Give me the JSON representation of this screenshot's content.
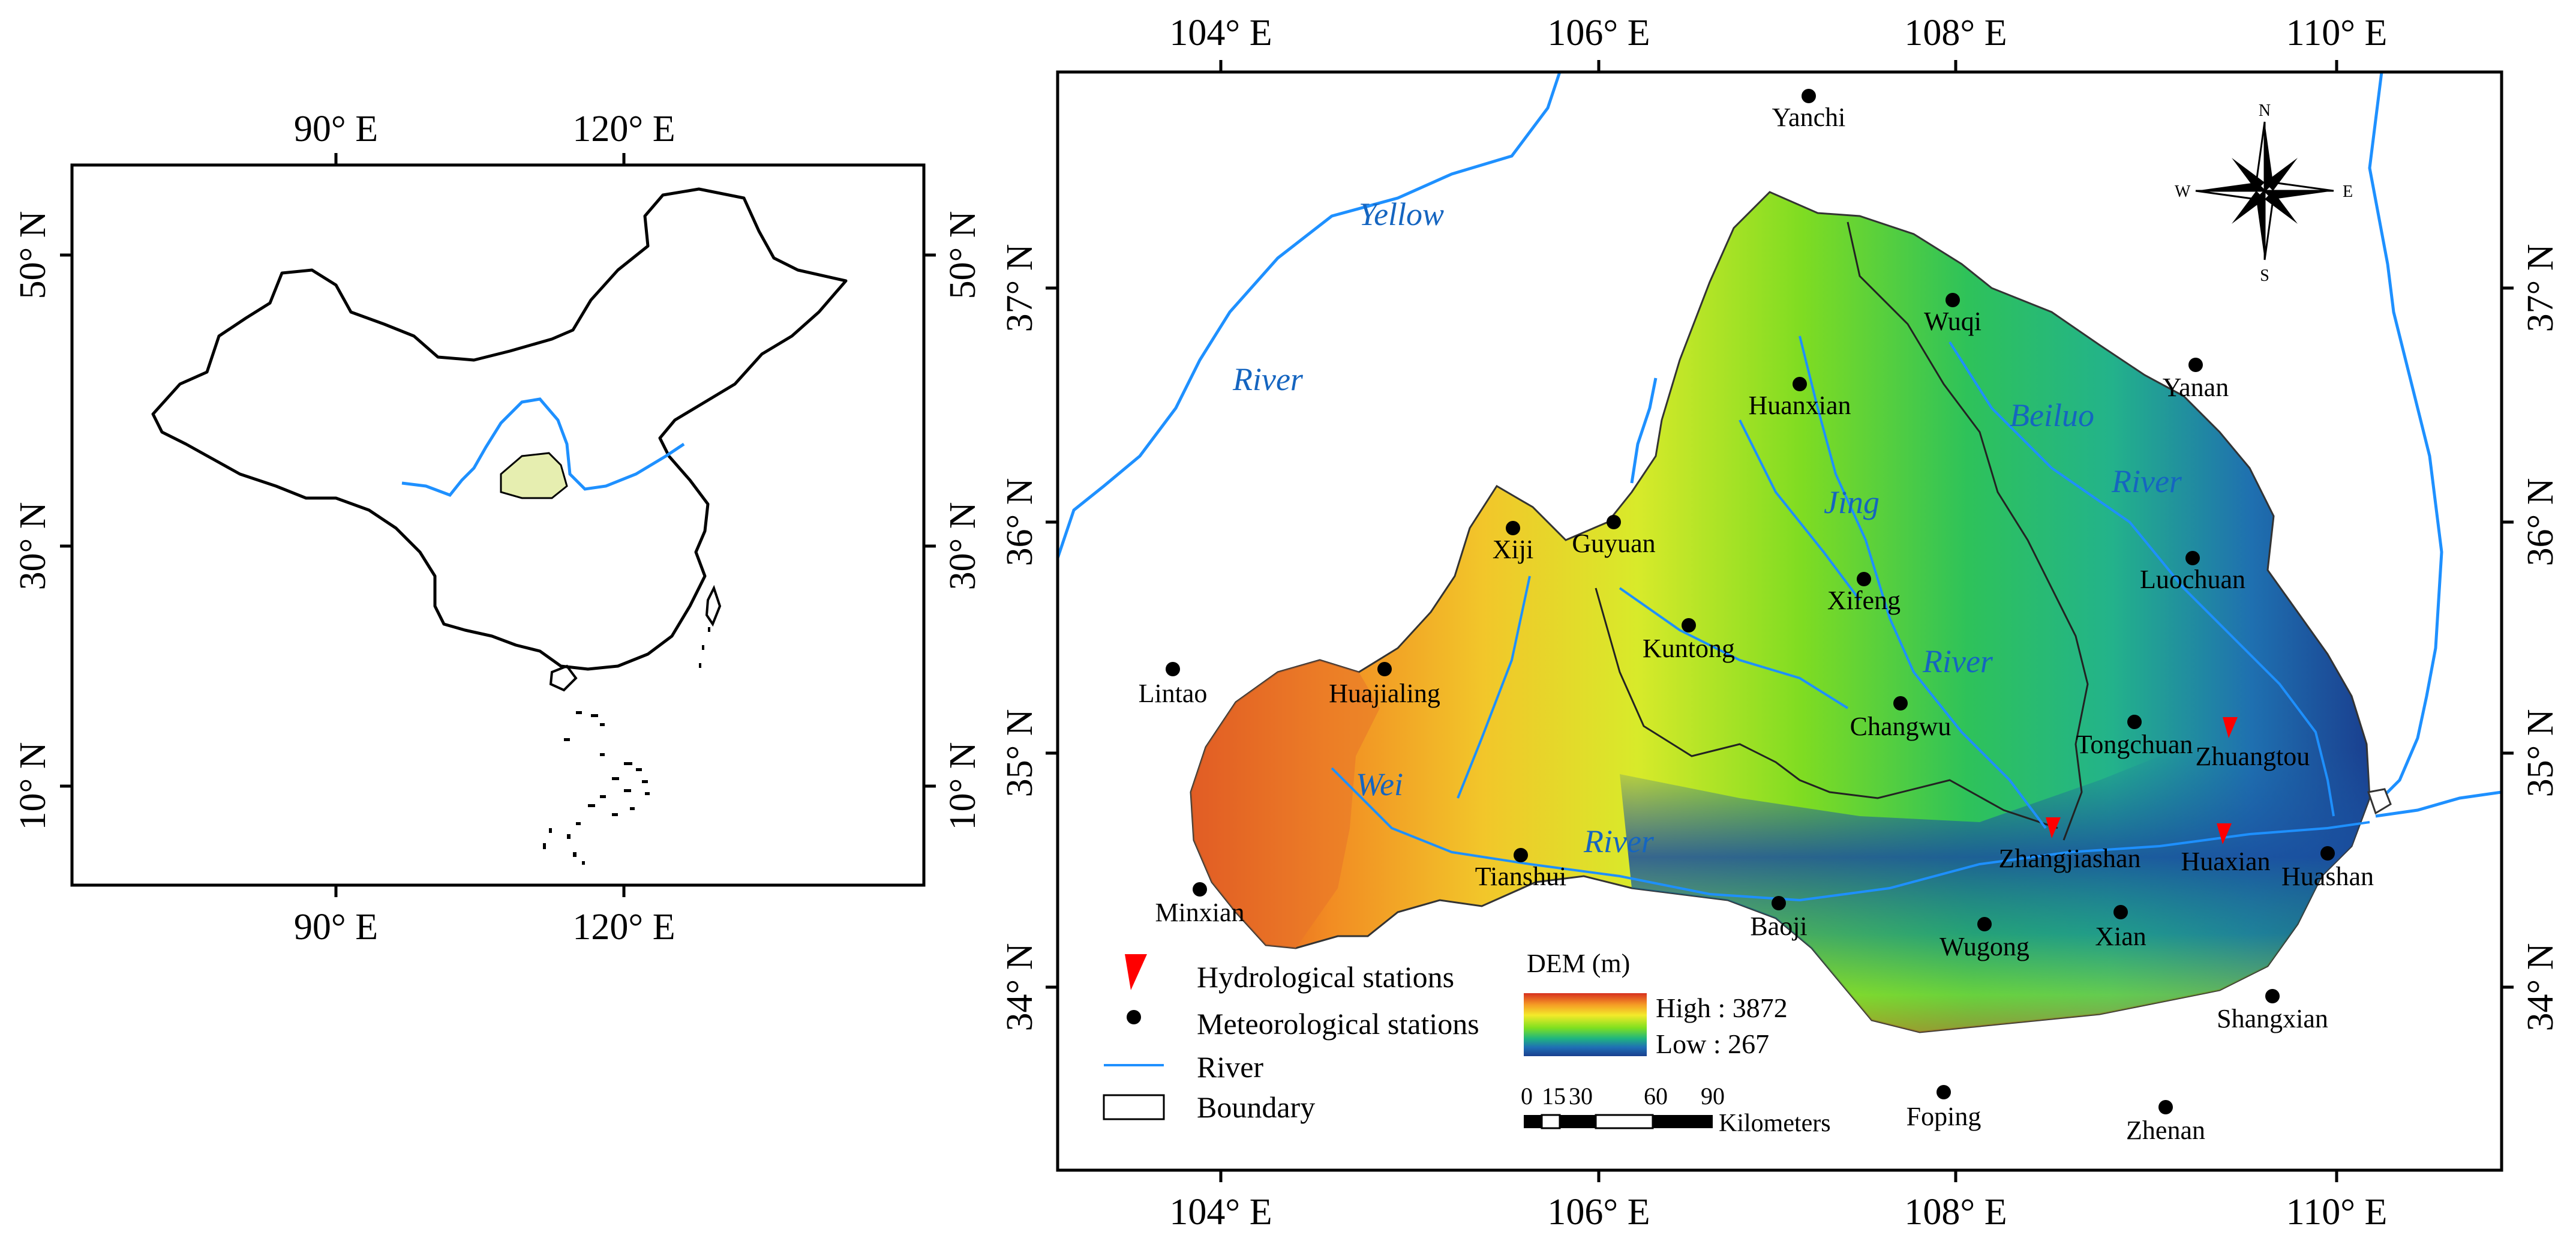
{
  "inset": {
    "lon_labels": [
      "90° E",
      "120° E"
    ],
    "lat_labels": [
      "50° N",
      "30° N",
      "10° N"
    ]
  },
  "main": {
    "lon_labels": [
      "104° E",
      "106° E",
      "108° E",
      "110° E"
    ],
    "lat_labels": [
      "37° N",
      "36° N",
      "35° N",
      "34° N"
    ]
  },
  "river_labels": {
    "yellow": "Yellow",
    "river1": "River",
    "beiluo": "Beiluo",
    "river2": "River",
    "jing": "Jing",
    "river3": "River",
    "wei": "Wei",
    "river4": "River"
  },
  "meteorological_stations": [
    "Yanchi",
    "Wuqi",
    "Huanxian",
    "Yanan",
    "Xiji",
    "Guyuan",
    "Xifeng",
    "Luochuan",
    "Kuntong",
    "Lintao",
    "Huajialing",
    "Changwu",
    "Tongchuan",
    "Tianshui",
    "Minxian",
    "Baoji",
    "Wugong",
    "Xian",
    "Huashan",
    "Shangxian",
    "Foping",
    "Zhenan"
  ],
  "hydrological_stations": [
    "Zhuangtou",
    "Zhangjiashan",
    "Huaxian"
  ],
  "compass": {
    "n": "N",
    "s": "S",
    "e": "E",
    "w": "W"
  },
  "legend": {
    "hydro": "Hydrological stations",
    "meteo": "Meteorological stations",
    "river": "River",
    "boundary": "Boundary"
  },
  "dem": {
    "title": "DEM (m)",
    "high": "High : 3872",
    "low": "Low : 267"
  },
  "scale": {
    "ticks": [
      "0",
      "15",
      "30",
      "60",
      "90"
    ],
    "unit": "Kilometers"
  },
  "colors": {
    "river": "#1e90ff",
    "river_label": "#1565c0",
    "hydro_marker": "#ff0000",
    "loess": "#e6eeb0",
    "dem_high": "#d7301f",
    "dem_mid": "#7fe020",
    "dem_low": "#1a3f8f"
  }
}
